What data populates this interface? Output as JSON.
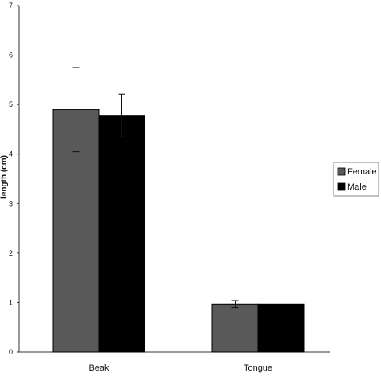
{
  "chart_data": {
    "type": "bar",
    "categories": [
      "Beak",
      "Tongue"
    ],
    "series": [
      {
        "name": "Female",
        "values": [
          4.9,
          0.97
        ],
        "errors": [
          0.85,
          0.07
        ],
        "color": "#595959"
      },
      {
        "name": "Male",
        "values": [
          4.78,
          0.97
        ],
        "errors": [
          0.43,
          0.0
        ],
        "color": "#000000"
      }
    ],
    "ylim": [
      0,
      7
    ],
    "yticks": [
      0,
      1,
      2,
      3,
      4,
      5,
      6,
      7
    ],
    "title": "",
    "xlabel": "",
    "ylabel": "length (cm)",
    "grid": false,
    "legend_position": "right"
  }
}
